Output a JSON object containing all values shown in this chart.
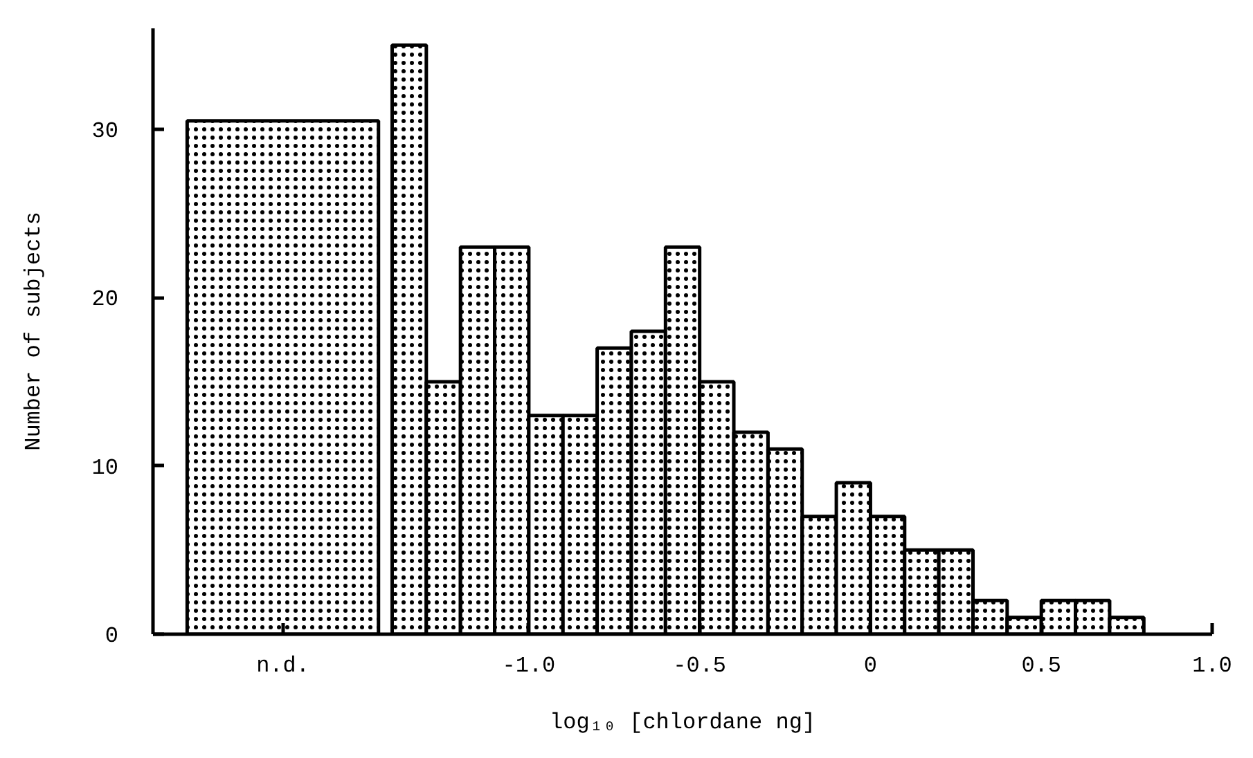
{
  "chart_data": {
    "type": "histogram",
    "xlabel": "log₁₀ [chlordane ng]",
    "ylabel": "Number of subjects",
    "bins": [
      -2.0,
      -1.44,
      -1.4,
      -1.3,
      -1.2,
      -1.1,
      -1.0,
      -0.9,
      -0.8,
      -0.7,
      -0.6,
      -0.5,
      -0.4,
      -0.3,
      -0.2,
      -0.1,
      0.0,
      0.1,
      0.2,
      0.3,
      0.4,
      0.5,
      0.6,
      0.7,
      0.8
    ],
    "values": [
      30.5,
      null,
      35,
      15,
      23,
      23,
      13,
      13,
      17,
      18,
      23,
      15,
      12,
      11,
      7,
      9,
      7,
      5,
      5,
      2,
      1,
      2,
      2,
      1
    ],
    "color": "#ffffff",
    "xlim": [
      -2.1,
      1.0
    ],
    "ylim": [
      0,
      36
    ],
    "xticks": [
      {
        "value": -1.72,
        "label": "n.d."
      },
      {
        "value": -1.0,
        "label": "-1.0"
      },
      {
        "value": -0.5,
        "label": "-0.5"
      },
      0,
      {
        "value": 0.5,
        "label": "0.5"
      },
      {
        "value": 1.0,
        "label": "1.0"
      }
    ],
    "yticks": [
      0,
      10,
      20,
      30
    ],
    "grid": false
  }
}
